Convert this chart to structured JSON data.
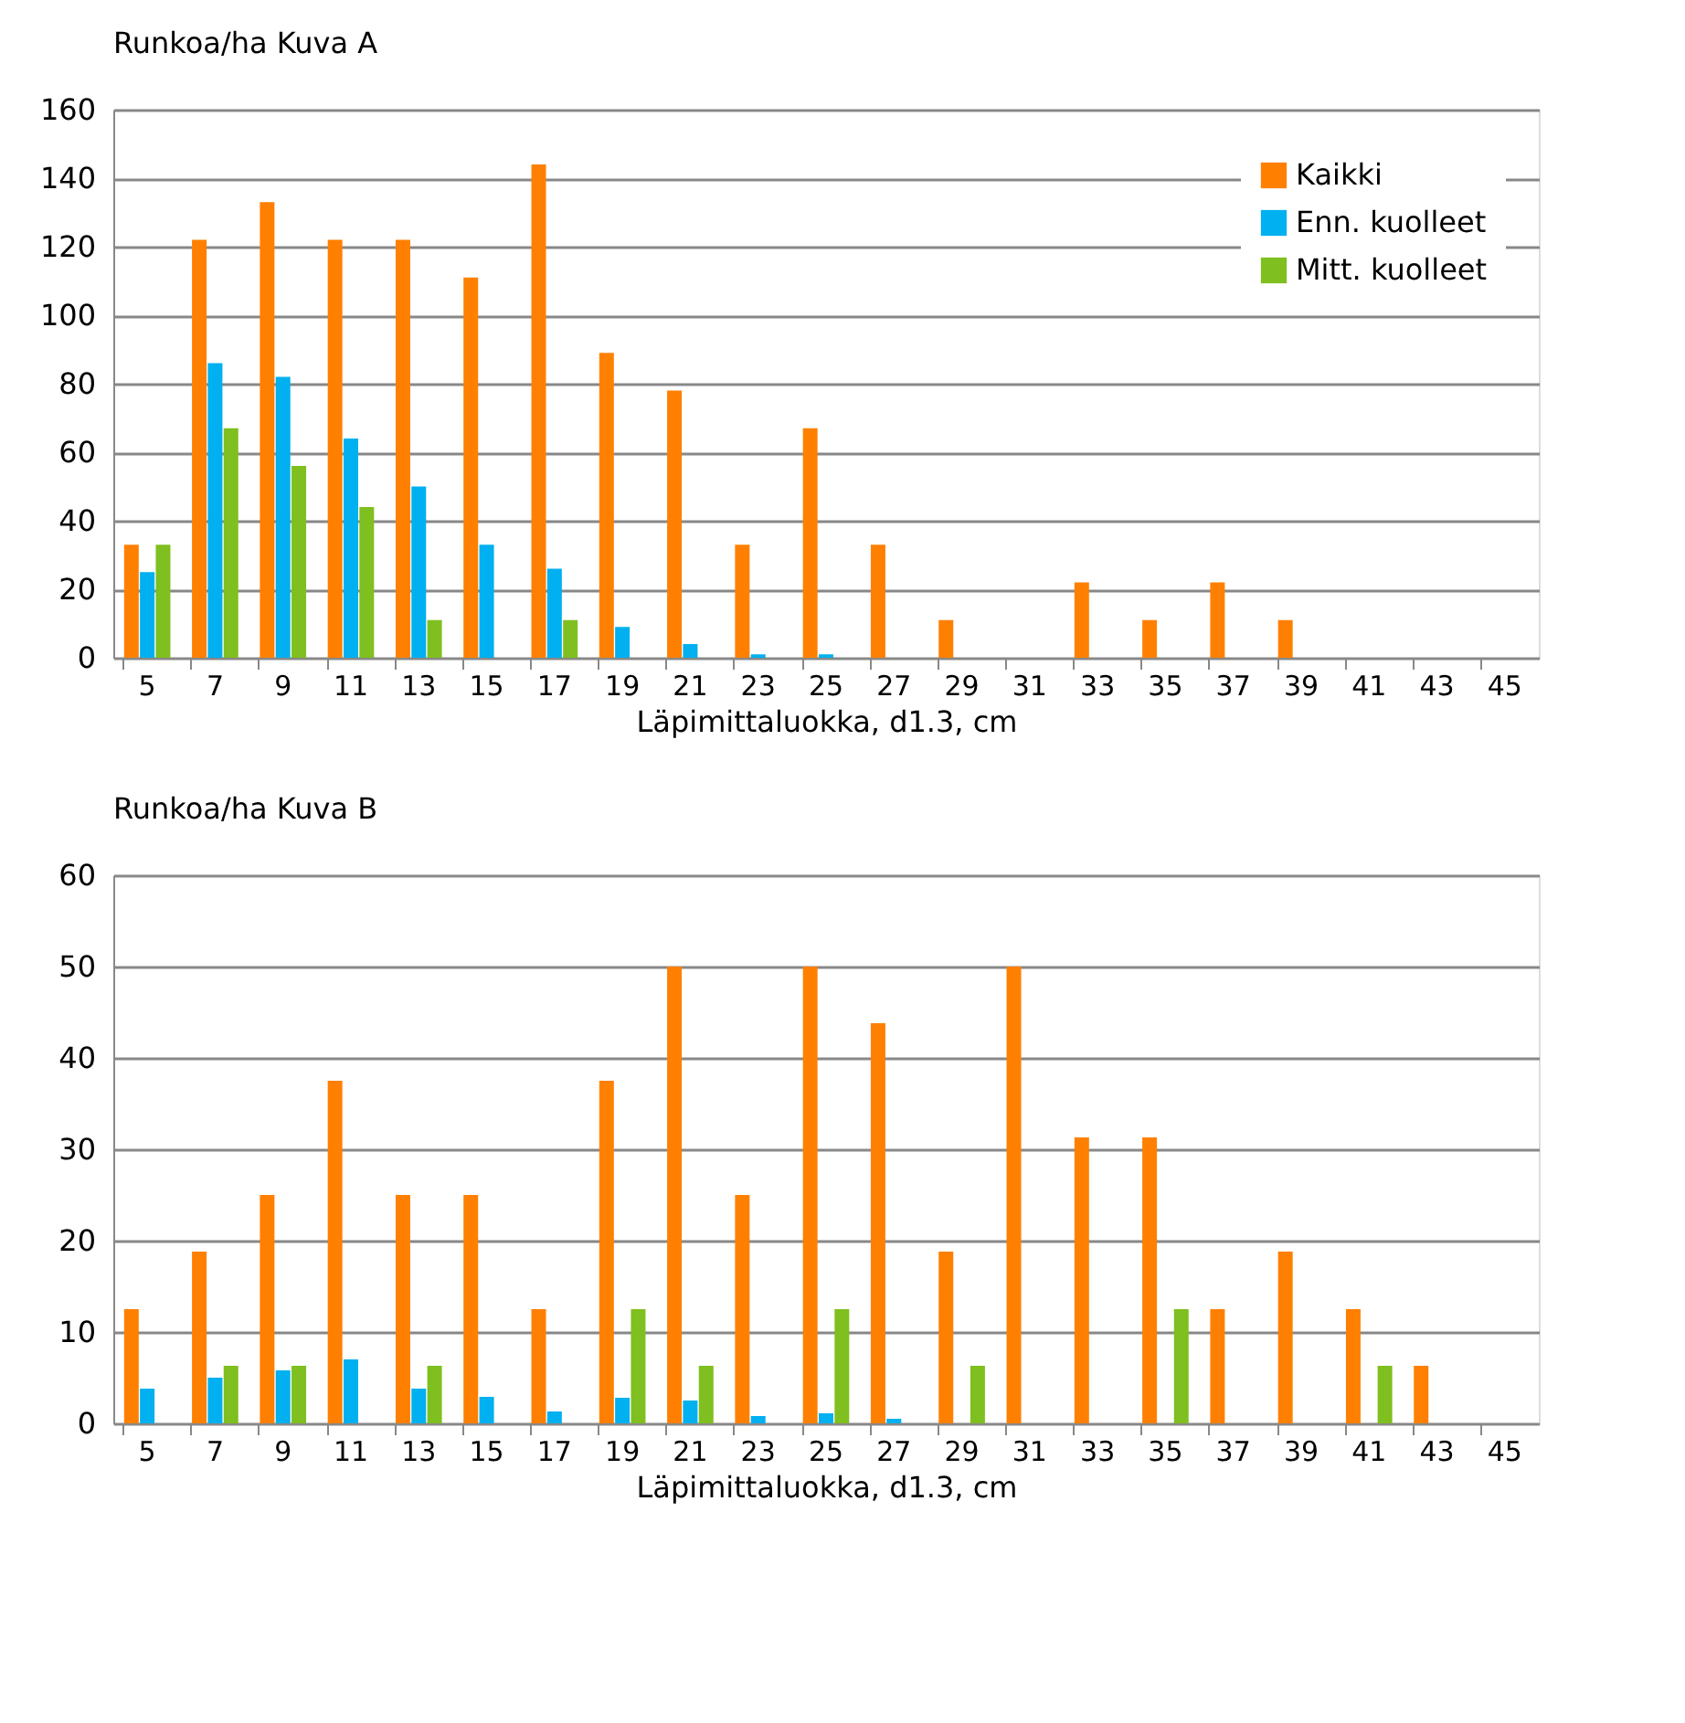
{
  "chart_data": [
    {
      "type": "bar",
      "title": "Runkoa/ha   Kuva A",
      "xlabel": "Läpimittaluokka, d1.3, cm",
      "categories": [
        "5",
        "7",
        "9",
        "11",
        "13",
        "15",
        "17",
        "19",
        "21",
        "23",
        "25",
        "27",
        "29",
        "31",
        "33",
        "35",
        "37",
        "39",
        "41",
        "43",
        "45"
      ],
      "series": [
        {
          "name": "Kaikki",
          "color": "#ff8000",
          "values": [
            33,
            122,
            133,
            122,
            122,
            111,
            144,
            89,
            78,
            33,
            67,
            33,
            11,
            0,
            22,
            11,
            22,
            11,
            0,
            0,
            0
          ]
        },
        {
          "name": "Enn. kuolleet",
          "color": "#00b0f0",
          "values": [
            25,
            86,
            82,
            64,
            50,
            33,
            26,
            9,
            4,
            1,
            1,
            0,
            0,
            0,
            0,
            0,
            0,
            0,
            0,
            0,
            0
          ]
        },
        {
          "name": "Mitt. kuolleet",
          "color": "#7fbf1f",
          "values": [
            33,
            67,
            56,
            44,
            11,
            0,
            11,
            0,
            0,
            0,
            0,
            0,
            0,
            0,
            0,
            0,
            0,
            0,
            0,
            0,
            0
          ]
        }
      ],
      "ylim": [
        0,
        160
      ],
      "yticks": [
        0,
        20,
        40,
        60,
        80,
        100,
        120,
        140,
        160
      ],
      "grid": "y",
      "legend": "top right"
    },
    {
      "type": "bar",
      "title": "Runkoa/ha  Kuva B",
      "xlabel": "Läpimittaluokka, d1.3, cm",
      "categories": [
        "5",
        "7",
        "9",
        "11",
        "13",
        "15",
        "17",
        "19",
        "21",
        "23",
        "25",
        "27",
        "29",
        "31",
        "33",
        "35",
        "37",
        "39",
        "41",
        "43",
        "45"
      ],
      "series": [
        {
          "color": "#ff8000",
          "values": [
            12.5,
            18.8,
            25,
            37.5,
            25,
            25,
            12.5,
            37.5,
            50,
            25,
            50,
            43.8,
            18.8,
            50,
            31.3,
            31.3,
            12.5,
            18.8,
            12.5,
            6.3,
            0
          ]
        },
        {
          "color": "#00b0f0",
          "values": [
            3.8,
            5,
            5.8,
            7,
            3.8,
            2.9,
            1.3,
            2.8,
            2.5,
            0.8,
            1.1,
            0.5,
            0,
            0,
            0,
            0,
            0,
            0,
            0,
            0,
            0
          ]
        },
        {
          "color": "#7fbf1f",
          "values": [
            0,
            6.3,
            6.3,
            0,
            6.3,
            0,
            0,
            12.5,
            6.3,
            0,
            12.5,
            0,
            6.3,
            0,
            0,
            12.5,
            0,
            0,
            6.3,
            0,
            0
          ]
        }
      ],
      "ylim": [
        0,
        60
      ],
      "yticks": [
        0,
        10,
        20,
        30,
        40,
        50,
        60
      ],
      "grid": "y"
    }
  ]
}
